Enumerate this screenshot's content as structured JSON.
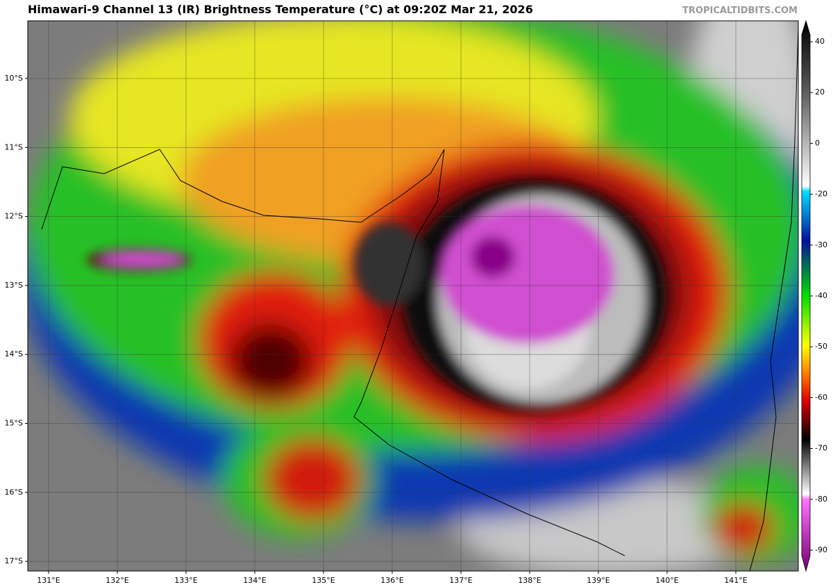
{
  "header": {
    "title": "Himawari-9 Channel 13 (IR) Brightness Temperature (°C) at 09:20Z Mar 21, 2026",
    "watermark": "TROPICALTIDBITS.COM"
  },
  "map": {
    "lat_labels": [
      "10°S",
      "11°S",
      "12°S",
      "13°S",
      "14°S",
      "15°S",
      "16°S",
      "17°S"
    ],
    "lon_labels": [
      "131°E",
      "132°E",
      "133°E",
      "134°E",
      "135°E",
      "136°E",
      "137°E",
      "138°E",
      "139°E",
      "140°E",
      "141°E"
    ]
  },
  "colorbar": {
    "ticks": [
      40,
      20,
      0,
      -20,
      -30,
      -40,
      -50,
      -60,
      -70,
      -80,
      -90
    ]
  }
}
